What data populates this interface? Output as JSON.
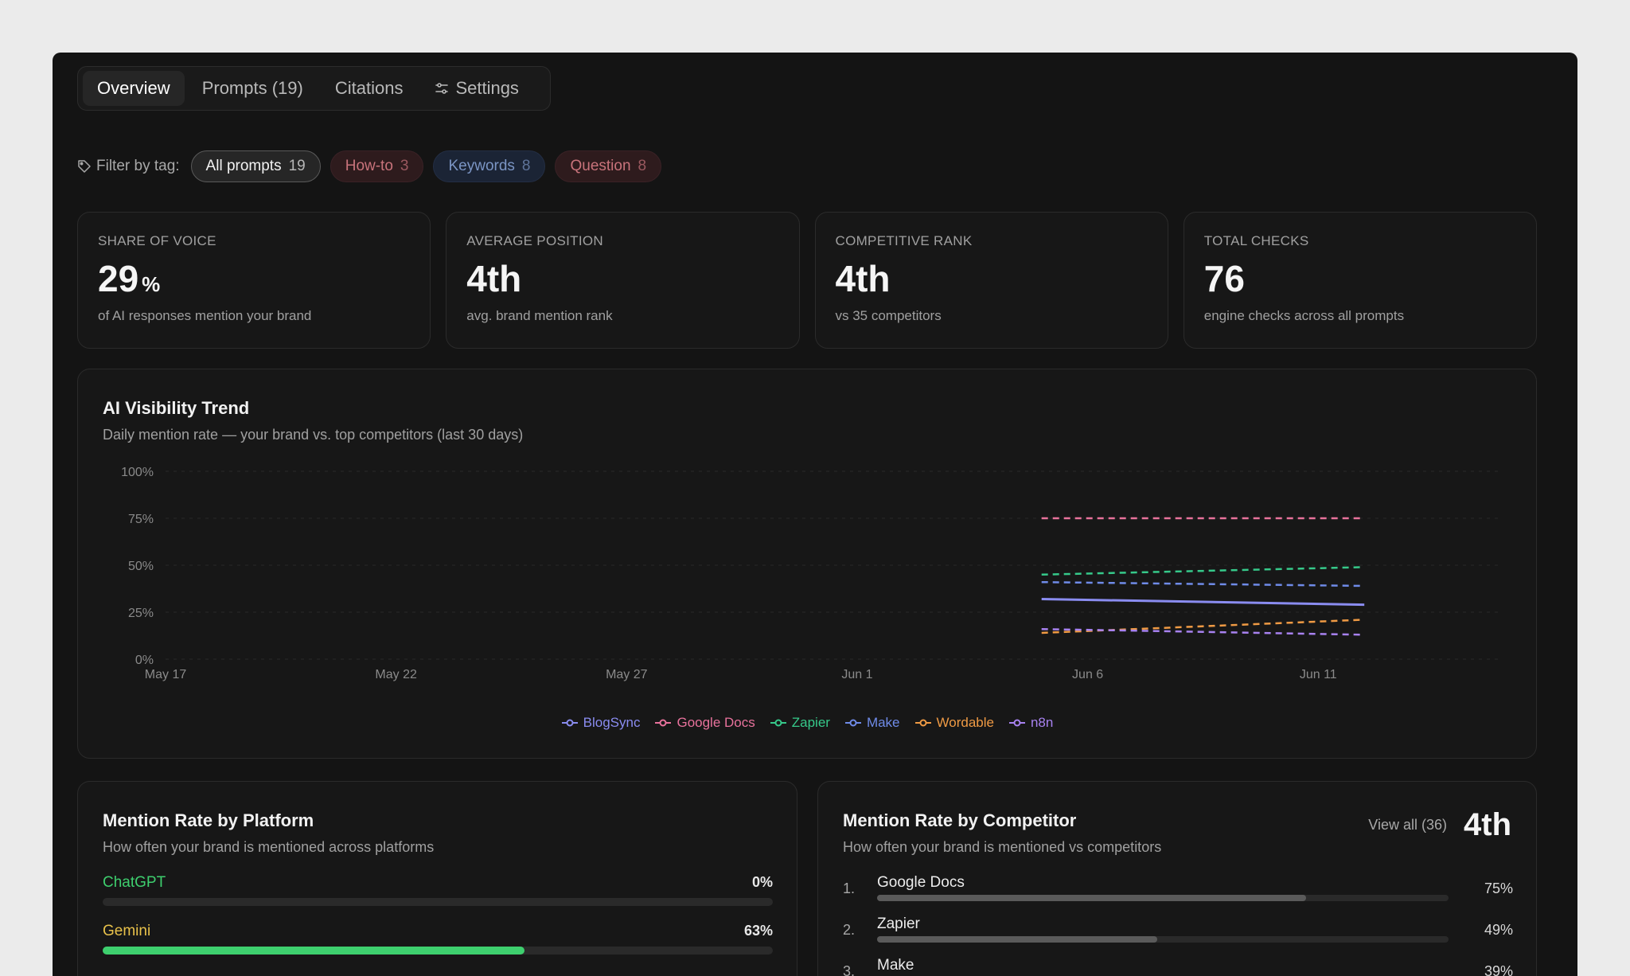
{
  "tabs": [
    {
      "label": "Overview"
    },
    {
      "label": "Prompts (19)"
    },
    {
      "label": "Citations"
    },
    {
      "label": "Settings",
      "icon": "sliders-icon"
    }
  ],
  "filter": {
    "label": "Filter by tag:",
    "chips": [
      {
        "label": "All prompts",
        "count": "19"
      },
      {
        "label": "How-to",
        "count": "3"
      },
      {
        "label": "Keywords",
        "count": "8"
      },
      {
        "label": "Question",
        "count": "8"
      }
    ]
  },
  "stats": [
    {
      "label": "SHARE OF VOICE",
      "value": "29",
      "unit": "%",
      "sub": "of AI responses mention your brand"
    },
    {
      "label": "AVERAGE POSITION",
      "value": "4th",
      "sub": "avg. brand mention rank"
    },
    {
      "label": "COMPETITIVE RANK",
      "value": "4th",
      "sub": "vs 35 competitors"
    },
    {
      "label": "TOTAL CHECKS",
      "value": "76",
      "sub": "engine checks across all prompts"
    }
  ],
  "trend": {
    "title": "AI Visibility Trend",
    "subtitle": "Daily mention rate — your brand vs. top competitors (last 30 days)"
  },
  "chart_data": {
    "type": "line",
    "x_ticks": [
      "May 17",
      "May 22",
      "May 27",
      "Jun 1",
      "Jun 6",
      "Jun 11"
    ],
    "y_ticks": [
      "0%",
      "25%",
      "50%",
      "75%",
      "100%"
    ],
    "ylim": [
      0,
      100
    ],
    "grid": true,
    "legend_position": "bottom",
    "x_range": [
      "May 17",
      "Jun 15"
    ],
    "series": [
      {
        "name": "BlogSync",
        "color": "#8a8cf0",
        "style": "solid",
        "points": [
          [
            "Jun 5",
            32
          ],
          [
            "Jun 12",
            29
          ]
        ]
      },
      {
        "name": "Google Docs",
        "color": "#e8729c",
        "style": "dashed",
        "points": [
          [
            "Jun 5",
            75
          ],
          [
            "Jun 12",
            75
          ]
        ]
      },
      {
        "name": "Zapier",
        "color": "#36c98a",
        "style": "dashed",
        "points": [
          [
            "Jun 5",
            45
          ],
          [
            "Jun 12",
            49
          ]
        ]
      },
      {
        "name": "Make",
        "color": "#6f8be8",
        "style": "dashed",
        "points": [
          [
            "Jun 5",
            41
          ],
          [
            "Jun 12",
            39
          ]
        ]
      },
      {
        "name": "Wordable",
        "color": "#ef9a44",
        "style": "dashed",
        "points": [
          [
            "Jun 5",
            14
          ],
          [
            "Jun 12",
            21
          ]
        ]
      },
      {
        "name": "n8n",
        "color": "#a882f0",
        "style": "dashed",
        "points": [
          [
            "Jun 5",
            16
          ],
          [
            "Jun 12",
            13
          ]
        ]
      }
    ]
  },
  "platforms": {
    "title": "Mention Rate by Platform",
    "subtitle": "How often your brand is mentioned across platforms",
    "items": [
      {
        "name": "ChatGPT",
        "pct": "0%",
        "value": 0,
        "name_color": "#3ecf6e",
        "bar_color": "#3ecf6e"
      },
      {
        "name": "Gemini",
        "pct": "63%",
        "value": 63,
        "name_color": "#e8c14a",
        "bar_color": "#3ecf6e"
      }
    ]
  },
  "competitors": {
    "title": "Mention Rate by Competitor",
    "subtitle": "How often your brand is mentioned vs competitors",
    "view_all": "View all (36)",
    "rank": "4th",
    "items": [
      {
        "num": "1.",
        "name": "Google Docs",
        "pct": "75%",
        "value": 75
      },
      {
        "num": "2.",
        "name": "Zapier",
        "pct": "49%",
        "value": 49
      },
      {
        "num": "3.",
        "name": "Make",
        "pct": "39%",
        "value": 39
      }
    ]
  }
}
